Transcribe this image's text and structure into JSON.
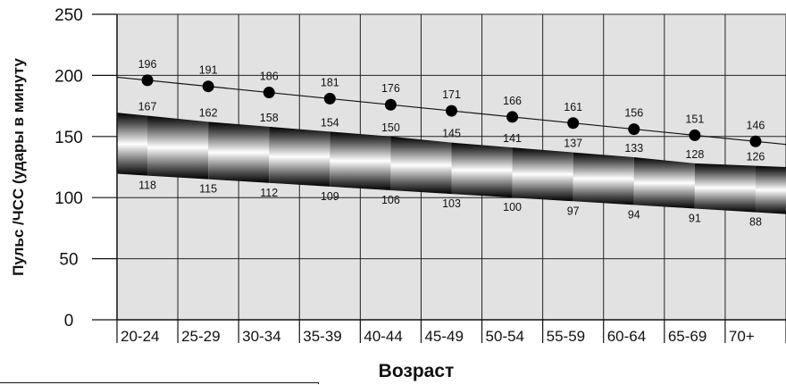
{
  "chart_data": {
    "type": "line",
    "title": "",
    "xlabel": "Возраст",
    "ylabel": "Пульс /ЧСС (удары в минуту",
    "ylim": [
      0,
      250
    ],
    "yticks": [
      "0",
      "50",
      "100",
      "150",
      "200",
      "250"
    ],
    "categories": [
      "20-24",
      "25-29",
      "30-34",
      "35-39",
      "40-44",
      "45-49",
      "50-54",
      "55-59",
      "60-64",
      "65-69",
      "70+"
    ],
    "grid": true,
    "series": [
      {
        "key": "max",
        "values": [
          196,
          191,
          186,
          181,
          176,
          171,
          166,
          161,
          156,
          151,
          146
        ]
      },
      {
        "key": "upper",
        "values": [
          167,
          162,
          158,
          154,
          150,
          145,
          141,
          137,
          133,
          128,
          126
        ]
      },
      {
        "key": "lower",
        "values": [
          118,
          115,
          112,
          109,
          106,
          103,
          100,
          97,
          94,
          91,
          88
        ]
      }
    ],
    "colors": {
      "plot_bg": "#e2e2e2",
      "grid": "#222222",
      "band_dark": "#000000",
      "band_light": "#ffffff",
      "marker": "#000000"
    }
  }
}
